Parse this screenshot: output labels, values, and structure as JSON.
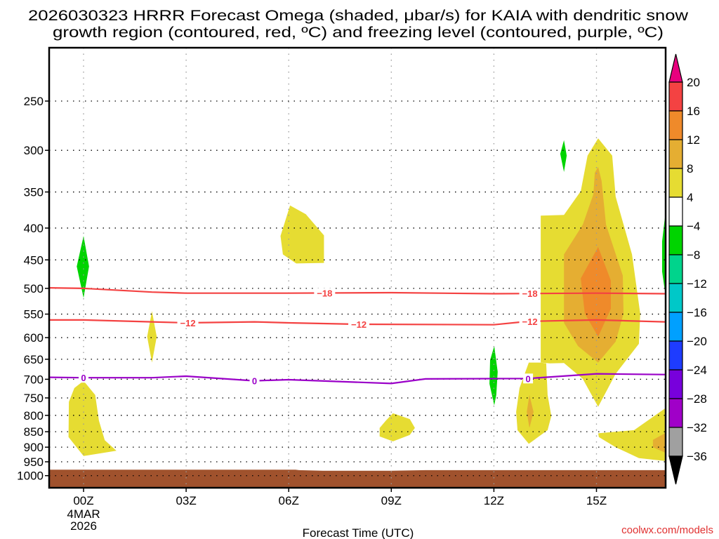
{
  "chart_data": {
    "type": "heatmap",
    "title_lines": [
      "2026030323 HRRR Forecast Omega (shaded, μbar/s) for KAIA with dendritic snow",
      "growth region (contoured, red, ºC) and freezing level (contoured, purple, ºC)"
    ],
    "xlabel": "Forecast Time (UTC)",
    "ylabel": "",
    "xlim": [
      -1,
      17
    ],
    "ylim": [
      1045,
      205
    ],
    "y_scale": "log",
    "x_ticks": [
      {
        "value": 0,
        "label": "00Z",
        "sub": [
          "4MAR",
          "2026"
        ]
      },
      {
        "value": 3,
        "label": "03Z"
      },
      {
        "value": 6,
        "label": "06Z"
      },
      {
        "value": 9,
        "label": "09Z"
      },
      {
        "value": 12,
        "label": "12Z"
      },
      {
        "value": 15,
        "label": "15Z"
      }
    ],
    "y_ticks": [
      250,
      300,
      350,
      400,
      450,
      500,
      550,
      600,
      650,
      700,
      750,
      800,
      850,
      900,
      950,
      1000
    ],
    "y_tick_labels": [
      "250",
      "300",
      "350",
      "400",
      "450",
      "500",
      "550",
      "600",
      "650",
      "700",
      "750",
      "800",
      "850",
      "900",
      "950",
      "1000"
    ],
    "grid": true,
    "colorbar": {
      "labels": [
        "20",
        "16",
        "12",
        "8",
        "4",
        "-4",
        "-8",
        "-12",
        "-16",
        "-20",
        "-24",
        "-28",
        "-32",
        "-36"
      ],
      "over_color": "#e8007e",
      "under_color": "#000000",
      "bins": [
        {
          "range": [
            16,
            20
          ],
          "color": "#f44242"
        },
        {
          "range": [
            12,
            16
          ],
          "color": "#ef8a2a"
        },
        {
          "range": [
            8,
            12
          ],
          "color": "#e5ae32"
        },
        {
          "range": [
            4,
            8
          ],
          "color": "#e6dc32"
        },
        {
          "range": [
            -4,
            4
          ],
          "color": "#ffffff"
        },
        {
          "range": [
            -8,
            -4
          ],
          "color": "#00d400"
        },
        {
          "range": [
            -12,
            -8
          ],
          "color": "#00d48c"
        },
        {
          "range": [
            -16,
            -12
          ],
          "color": "#00c8c8"
        },
        {
          "range": [
            -20,
            -16
          ],
          "color": "#00a0ff"
        },
        {
          "range": [
            -24,
            -20
          ],
          "color": "#1e3cff"
        },
        {
          "range": [
            -28,
            -24
          ],
          "color": "#7800dc"
        },
        {
          "range": [
            -32,
            -28
          ],
          "color": "#a000c8"
        },
        {
          "range": [
            -36,
            -32
          ],
          "color": "#a0a0a0"
        }
      ]
    },
    "omega_regions": [
      {
        "name": "omega-region-00z-upper",
        "level": "-8..-4",
        "color": "#00d400",
        "points": [
          [
            0,
            412
          ],
          [
            0.16,
            461
          ],
          [
            0,
            518
          ],
          [
            -0.2,
            461
          ]
        ]
      },
      {
        "name": "omega-region-00z-lower",
        "level": "4..8",
        "color": "#e6dc32",
        "points": [
          [
            0,
            704
          ],
          [
            0.34,
            742
          ],
          [
            0.45,
            816
          ],
          [
            0.62,
            877
          ],
          [
            0.96,
            912
          ],
          [
            0,
            930
          ],
          [
            -0.44,
            867
          ],
          [
            -0.43,
            761
          ],
          [
            -0.27,
            723
          ]
        ]
      },
      {
        "name": "omega-region-02z",
        "level": "4..8",
        "color": "#e6dc32",
        "points": [
          [
            2,
            544
          ],
          [
            2.14,
            598
          ],
          [
            2,
            658
          ],
          [
            1.86,
            598
          ]
        ]
      },
      {
        "name": "omega-region-06z",
        "level": "4..8",
        "color": "#e6dc32",
        "points": [
          [
            6.04,
            368
          ],
          [
            6.5,
            380
          ],
          [
            7.03,
            411
          ],
          [
            7.03,
            455
          ],
          [
            6.22,
            456
          ],
          [
            5.83,
            441
          ],
          [
            5.76,
            412
          ]
        ]
      },
      {
        "name": "omega-region-09z",
        "level": "4..8",
        "color": "#e6dc32",
        "points": [
          [
            9.05,
            794
          ],
          [
            9.54,
            811
          ],
          [
            9.69,
            838
          ],
          [
            9.54,
            860
          ],
          [
            9.05,
            881
          ],
          [
            8.66,
            865
          ],
          [
            8.66,
            838
          ],
          [
            8.84,
            816
          ]
        ]
      },
      {
        "name": "omega-region-12z",
        "level": "-8..-4",
        "color": "#00d400",
        "points": [
          [
            12.01,
            619
          ],
          [
            12.11,
            681
          ],
          [
            12.07,
            742
          ],
          [
            12.01,
            771
          ],
          [
            11.87,
            712
          ],
          [
            11.89,
            652
          ]
        ]
      },
      {
        "name": "omega-region-14z-upper",
        "level": "-8..-4",
        "color": "#00d400",
        "points": [
          [
            14.05,
            289
          ],
          [
            14.13,
            306
          ],
          [
            14.05,
            325
          ],
          [
            13.94,
            304
          ]
        ]
      },
      {
        "name": "omega-region-15z-main",
        "level": "4..8",
        "color": "#e6dc32",
        "points": [
          [
            13.37,
            382
          ],
          [
            14.05,
            381
          ],
          [
            14.54,
            349
          ],
          [
            14.74,
            306
          ],
          [
            15.05,
            287
          ],
          [
            15.46,
            306
          ],
          [
            15.56,
            356
          ],
          [
            16.04,
            441
          ],
          [
            16.28,
            549
          ],
          [
            16.24,
            614
          ],
          [
            15.56,
            686
          ],
          [
            15.05,
            775
          ],
          [
            14.6,
            699
          ],
          [
            14.05,
            659
          ],
          [
            13.64,
            660
          ],
          [
            13.37,
            658
          ]
        ]
      },
      {
        "name": "omega-region-15z-8",
        "level": "8..12",
        "color": "#e5ae32",
        "points": [
          [
            15.05,
            319
          ],
          [
            15.15,
            336
          ],
          [
            15.28,
            395
          ],
          [
            15.77,
            477
          ],
          [
            15.79,
            549
          ],
          [
            15.56,
            609
          ],
          [
            15.05,
            658
          ],
          [
            14.46,
            619
          ],
          [
            14.05,
            568
          ],
          [
            14.05,
            441
          ],
          [
            14.6,
            395
          ],
          [
            14.91,
            353
          ],
          [
            14.95,
            326
          ]
        ]
      },
      {
        "name": "omega-region-15z-12",
        "level": "12..16",
        "color": "#ef8a2a",
        "points": [
          [
            15.05,
            429
          ],
          [
            15.42,
            486
          ],
          [
            15.42,
            539
          ],
          [
            15.05,
            598
          ],
          [
            14.66,
            549
          ],
          [
            14.54,
            482
          ]
        ]
      },
      {
        "name": "omega-region-13z-lower",
        "level": "4..8",
        "color": "#e6dc32",
        "points": [
          [
            13.02,
            658
          ],
          [
            13.37,
            658
          ],
          [
            13.53,
            660
          ],
          [
            13.57,
            742
          ],
          [
            13.68,
            802
          ],
          [
            13.57,
            845
          ],
          [
            13.02,
            889
          ],
          [
            12.69,
            845
          ],
          [
            12.65,
            790
          ],
          [
            12.75,
            723
          ]
        ]
      },
      {
        "name": "omega-region-13z-lower-8",
        "level": "8..12",
        "color": "#e5ae32",
        "points": [
          [
            13.04,
            742
          ],
          [
            13.16,
            790
          ],
          [
            13.04,
            838
          ],
          [
            12.96,
            790
          ]
        ]
      },
      {
        "name": "omega-region-16z-lower",
        "level": "4..8",
        "color": "#e6dc32",
        "points": [
          [
            15.05,
            855
          ],
          [
            16.1,
            845
          ],
          [
            17.0,
            780
          ],
          [
            17.0,
            947
          ],
          [
            16.24,
            937
          ],
          [
            15.56,
            900
          ],
          [
            15.07,
            867
          ]
        ]
      },
      {
        "name": "omega-region-16z-lower-8",
        "level": "8..12",
        "color": "#e5ae32",
        "points": [
          [
            16.65,
            876
          ],
          [
            17.0,
            855
          ],
          [
            17.0,
            918
          ],
          [
            16.65,
            900
          ]
        ]
      },
      {
        "name": "omega-region-17z-edge",
        "level": "-8..-4",
        "color": "#00d400",
        "points": [
          [
            17.0,
            385
          ],
          [
            16.92,
            420
          ],
          [
            16.92,
            470
          ],
          [
            17.0,
            505
          ]
        ]
      }
    ],
    "ground": {
      "color": "#a0522d",
      "top": [
        [
          -1,
          978
        ],
        [
          6.2,
          978
        ],
        [
          6.3,
          980
        ],
        [
          7,
          982
        ],
        [
          9,
          982
        ],
        [
          10,
          980
        ],
        [
          17,
          980
        ]
      ]
    },
    "contours": [
      {
        "name": "dgz-contour-minus18",
        "label": "-18",
        "color": "#f44242",
        "points": [
          [
            -1,
            499
          ],
          [
            0,
            500
          ],
          [
            2,
            507
          ],
          [
            3,
            509
          ],
          [
            6,
            509
          ],
          [
            9,
            508
          ],
          [
            12,
            510
          ],
          [
            15,
            509
          ],
          [
            17,
            510
          ]
        ],
        "label_at": [
          7.05,
          13.05
        ]
      },
      {
        "name": "dgz-contour-minus12",
        "label": "-12",
        "color": "#f44242",
        "points": [
          [
            -1,
            562
          ],
          [
            0,
            562
          ],
          [
            2,
            566
          ],
          [
            3,
            568
          ],
          [
            5,
            566
          ],
          [
            6,
            568
          ],
          [
            8,
            571
          ],
          [
            12,
            572
          ],
          [
            13,
            565
          ],
          [
            15,
            562
          ],
          [
            17,
            566
          ]
        ],
        "label_at": [
          3.05,
          8.05,
          13.05
        ]
      },
      {
        "name": "freezing-level-contour-0",
        "label": "0",
        "color": "#9a00c8",
        "points": [
          [
            -1,
            695
          ],
          [
            0,
            696
          ],
          [
            2,
            696
          ],
          [
            3,
            692
          ],
          [
            5,
            704
          ],
          [
            6,
            701
          ],
          [
            9,
            711
          ],
          [
            10,
            699
          ],
          [
            13,
            698
          ],
          [
            15,
            686
          ],
          [
            17,
            688
          ]
        ],
        "label_at": [
          0,
          5,
          13
        ]
      }
    ]
  },
  "footer": {
    "credit": "coolwx.com/models",
    "credit_color": "#e03030"
  }
}
